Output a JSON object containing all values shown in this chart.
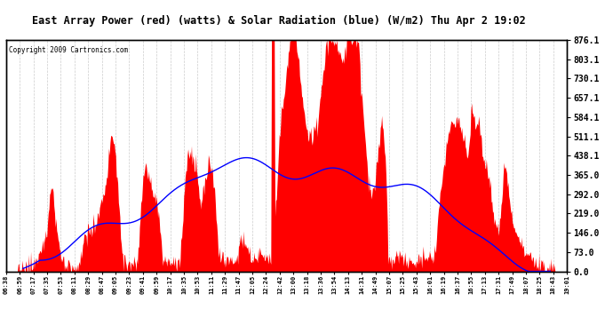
{
  "title": "East Array Power (red) (watts) & Solar Radiation (blue) (W/m2) Thu Apr 2 19:02",
  "copyright": "Copyright 2009 Cartronics.com",
  "background_color": "#ffffff",
  "plot_bg_color": "#ffffff",
  "y_ticks": [
    0.0,
    73.0,
    146.0,
    219.0,
    292.0,
    365.0,
    438.1,
    511.1,
    584.1,
    657.1,
    730.1,
    803.1,
    876.1
  ],
  "ylim": [
    0.0,
    876.1
  ],
  "x_labels": [
    "06:38",
    "06:59",
    "07:17",
    "07:35",
    "07:53",
    "08:11",
    "08:29",
    "08:47",
    "09:05",
    "09:23",
    "09:41",
    "09:59",
    "10:17",
    "10:35",
    "10:53",
    "11:11",
    "11:29",
    "11:47",
    "12:05",
    "12:24",
    "12:42",
    "13:00",
    "13:18",
    "13:36",
    "13:54",
    "14:13",
    "14:31",
    "14:49",
    "15:07",
    "15:25",
    "15:43",
    "16:01",
    "16:19",
    "16:37",
    "16:55",
    "17:13",
    "17:31",
    "17:49",
    "18:07",
    "18:25",
    "18:43",
    "19:01"
  ],
  "grid_color": "#cccccc",
  "line_color_blue": "#0000ff",
  "fill_color_red": "#ff0000",
  "outer_box_color": "#000000",
  "n_points": 800
}
